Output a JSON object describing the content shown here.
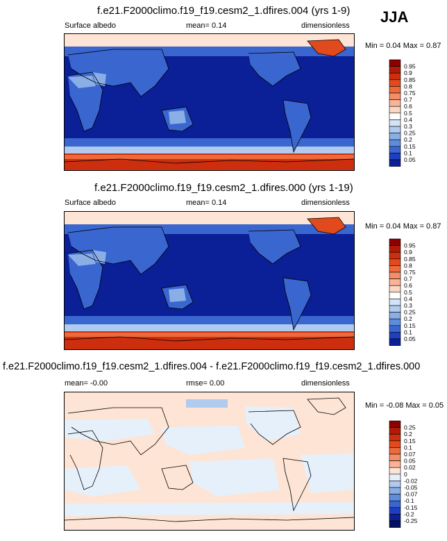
{
  "season": "JJA",
  "panels": [
    {
      "title": "f.e21.F2000climo.f19_f19.cesm2_1.dfires.004 (yrs 1-9)",
      "left": "Surface albedo",
      "center": "mean=  0.14",
      "right": "dimensionless",
      "range": "Min =  0.04 Max =  0.87"
    },
    {
      "title": "f.e21.F2000climo.f19_f19.cesm2_1.dfires.000 (yrs 1-19)",
      "left": "Surface albedo",
      "center": "mean=  0.14",
      "right": "dimensionless",
      "range": "Min =  0.04 Max =  0.87"
    },
    {
      "title": "f.e21.F2000climo.f19_f19.cesm2_1.dfires.004 - f.e21.F2000climo.f19_f19.cesm2_1.dfires.000",
      "left": "mean=  -0.00",
      "center": "rmse=  0.00",
      "right": "dimensionless",
      "range": "Min =  -0.08 Max =  0.05"
    }
  ],
  "chart_data": [
    {
      "type": "heatmap",
      "title": "f.e21.F2000climo.f19_f19.cesm2_1.dfires.004 (yrs 1-9)",
      "variable": "Surface albedo",
      "units": "dimensionless",
      "mean": 0.14,
      "min": 0.04,
      "max": 0.87,
      "colorbar_levels": [
        "0.95",
        "0.9",
        "0.85",
        "0.8",
        "0.75",
        "0.7",
        "0.6",
        "0.5",
        "0.4",
        "0.3",
        "0.25",
        "0.2",
        "0.15",
        "0.1",
        "0.05"
      ],
      "colorbar_colors": [
        "#8b0000",
        "#b01a06",
        "#cc2e0e",
        "#e04a1c",
        "#ee6a3a",
        "#f58e66",
        "#f9b497",
        "#fbd7c3",
        "#ffffff",
        "#d3e4f7",
        "#b0cbee",
        "#8aaee6",
        "#5f8ddb",
        "#3a66d0",
        "#1f3fc2",
        "#0b1f96"
      ]
    },
    {
      "type": "heatmap",
      "title": "f.e21.F2000climo.f19_f19.cesm2_1.dfires.000 (yrs 1-19)",
      "variable": "Surface albedo",
      "units": "dimensionless",
      "mean": 0.14,
      "min": 0.04,
      "max": 0.87,
      "colorbar_levels": [
        "0.95",
        "0.9",
        "0.85",
        "0.8",
        "0.75",
        "0.7",
        "0.6",
        "0.5",
        "0.4",
        "0.3",
        "0.25",
        "0.2",
        "0.15",
        "0.1",
        "0.05"
      ],
      "colorbar_colors": [
        "#8b0000",
        "#b01a06",
        "#cc2e0e",
        "#e04a1c",
        "#ee6a3a",
        "#f58e66",
        "#f9b497",
        "#fbd7c3",
        "#ffffff",
        "#d3e4f7",
        "#b0cbee",
        "#8aaee6",
        "#5f8ddb",
        "#3a66d0",
        "#1f3fc2",
        "#0b1f96"
      ]
    },
    {
      "type": "heatmap",
      "title": "f.e21.F2000climo.f19_f19.cesm2_1.dfires.004 - f.e21.F2000climo.f19_f19.cesm2_1.dfires.000",
      "units": "dimensionless",
      "mean": -0.0,
      "rmse": 0.0,
      "min": -0.08,
      "max": 0.05,
      "colorbar_levels": [
        "0.25",
        "0.2",
        "0.15",
        "0.1",
        "0.07",
        "0.05",
        "0.02",
        "0",
        "-0.02",
        "-0.05",
        "-0.07",
        "-0.1",
        "-0.15",
        "-0.2",
        "-0.25"
      ],
      "colorbar_colors": [
        "#8b0000",
        "#b01a06",
        "#cc2e0e",
        "#e04a1c",
        "#ee6a3a",
        "#f58e66",
        "#f9b497",
        "#fde4d5",
        "#e6f0fb",
        "#b0cbee",
        "#8aaee6",
        "#5f8ddb",
        "#3a66d0",
        "#1f3fc2",
        "#0b1f96",
        "#06125e"
      ]
    }
  ]
}
